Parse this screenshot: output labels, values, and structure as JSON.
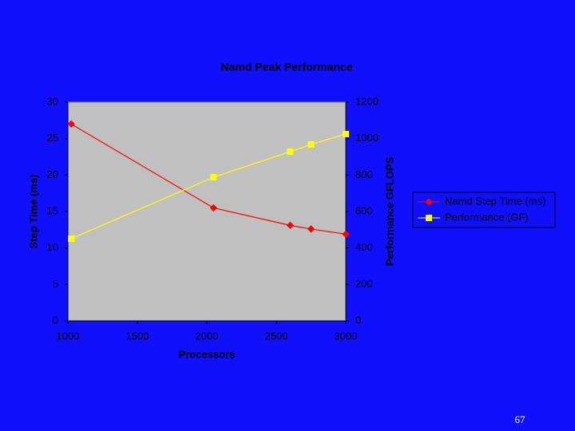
{
  "chart_data": {
    "type": "line",
    "title": "Namd Peak Performance",
    "x_label": "Processors",
    "y_label": "Step Time (ms)",
    "y2_label": "Performance GFLOPS",
    "x": [
      1024,
      2048,
      2600,
      2750,
      3000
    ],
    "series": [
      {
        "name": "Namd Step Time (ms)",
        "color": "#ff0000",
        "marker": "diamond",
        "values": [
          27.0,
          15.5,
          13.1,
          12.6,
          11.9
        ]
      },
      {
        "name": "Performance (GF)",
        "color": "#ffff00",
        "marker": "square",
        "axis": "y2",
        "values": [
          451,
          788,
          928,
          968,
          1025
        ]
      }
    ],
    "xlim": [
      1000,
      3000
    ],
    "xticks": [
      1000,
      1500,
      2000,
      2500,
      3000
    ],
    "ylim": [
      0,
      30
    ],
    "yticks": [
      0,
      5,
      10,
      15,
      20,
      25,
      30
    ],
    "y2lim": [
      0,
      1200
    ],
    "y2ticks": [
      0,
      200,
      400,
      600,
      800,
      1000,
      1200
    ],
    "grid": false,
    "legend": "right",
    "plot_background": "#c0c0c0"
  },
  "page_number": "67"
}
